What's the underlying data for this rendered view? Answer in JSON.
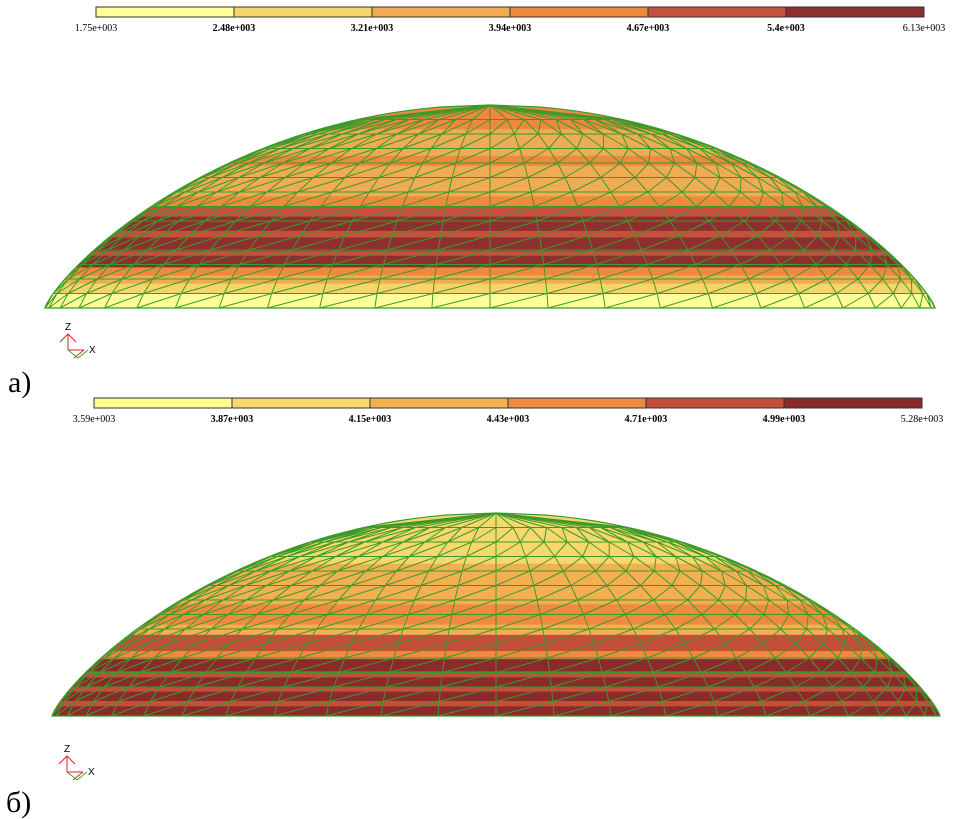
{
  "panels": [
    {
      "label": "a)",
      "axes": {
        "z": "Z",
        "x": "X"
      },
      "legend": {
        "labels": [
          "1.75e+003",
          "2.48e+003",
          "3.21e+003",
          "3.94e+003",
          "4.67e+003",
          "5.4e+003",
          "6.13e+003"
        ],
        "colors": [
          "#ffff99",
          "#f6d66a",
          "#f0ac52",
          "#ee8a3e",
          "#c65040",
          "#8e2f2f"
        ]
      }
    },
    {
      "label": "б)",
      "axes": {
        "z": "Z",
        "x": "X"
      },
      "legend": {
        "labels": [
          "3.59e+003",
          "3.87e+003",
          "4.15e+003",
          "4.43e+003",
          "4.71e+003",
          "4.99e+003",
          "5.28e+003"
        ],
        "colors": [
          "#ffff90",
          "#f8d86c",
          "#f4b050",
          "#f08a3e",
          "#c44e3c",
          "#8a2a2a"
        ]
      }
    }
  ]
}
